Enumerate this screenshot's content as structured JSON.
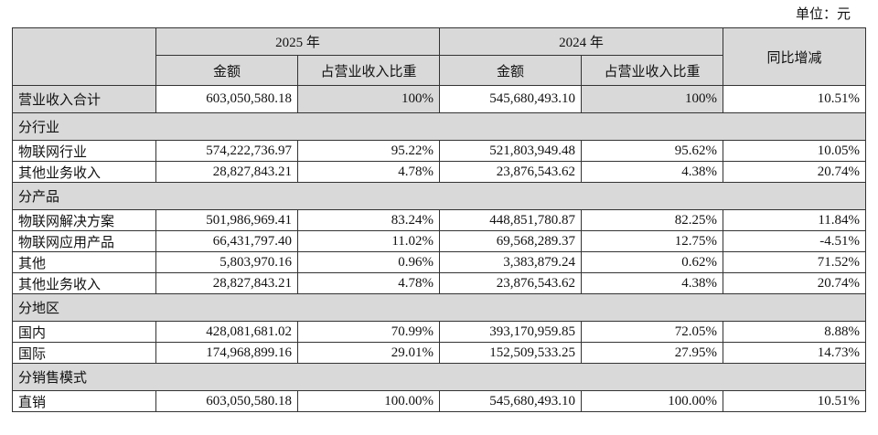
{
  "header": {
    "unit": "单位：元"
  },
  "table": {
    "years": [
      "2025 年",
      "2024 年"
    ],
    "subheaders": [
      "金额",
      "占营业收入比重",
      "金额",
      "占营业收入比重"
    ],
    "change_header": "同比增减",
    "rows": [
      {
        "cells": [
          "营业收入合计",
          "603,050,580.18",
          "100%",
          "545,680,493.10",
          "100%",
          "10.51%"
        ]
      },
      {
        "section": "分行业"
      },
      {
        "cells": [
          "物联网行业",
          "574,222,736.97",
          "95.22%",
          "521,803,949.48",
          "95.62%",
          "10.05%"
        ]
      },
      {
        "cells": [
          "其他业务收入",
          "28,827,843.21",
          "4.78%",
          "23,876,543.62",
          "4.38%",
          "20.74%"
        ]
      },
      {
        "section": "分产品"
      },
      {
        "cells": [
          "物联网解决方案",
          "501,986,969.41",
          "83.24%",
          "448,851,780.87",
          "82.25%",
          "11.84%"
        ]
      },
      {
        "cells": [
          "物联网应用产品",
          "66,431,797.40",
          "11.02%",
          "69,568,289.37",
          "12.75%",
          "-4.51%"
        ]
      },
      {
        "cells": [
          "其他",
          "5,803,970.16",
          "0.96%",
          "3,383,879.24",
          "0.62%",
          "71.52%"
        ]
      },
      {
        "cells": [
          "其他业务收入",
          "28,827,843.21",
          "4.78%",
          "23,876,543.62",
          "4.38%",
          "20.74%"
        ]
      },
      {
        "section": "分地区"
      },
      {
        "cells": [
          "国内",
          "428,081,681.02",
          "70.99%",
          "393,170,959.85",
          "72.05%",
          "8.88%"
        ]
      },
      {
        "cells": [
          "国际",
          "174,968,899.16",
          "29.01%",
          "152,509,533.25",
          "27.95%",
          "14.73%"
        ]
      },
      {
        "section": "分销售模式"
      },
      {
        "cells": [
          "直销",
          "603,050,580.18",
          "100.00%",
          "545,680,493.10",
          "100.00%",
          "10.51%"
        ]
      }
    ]
  }
}
